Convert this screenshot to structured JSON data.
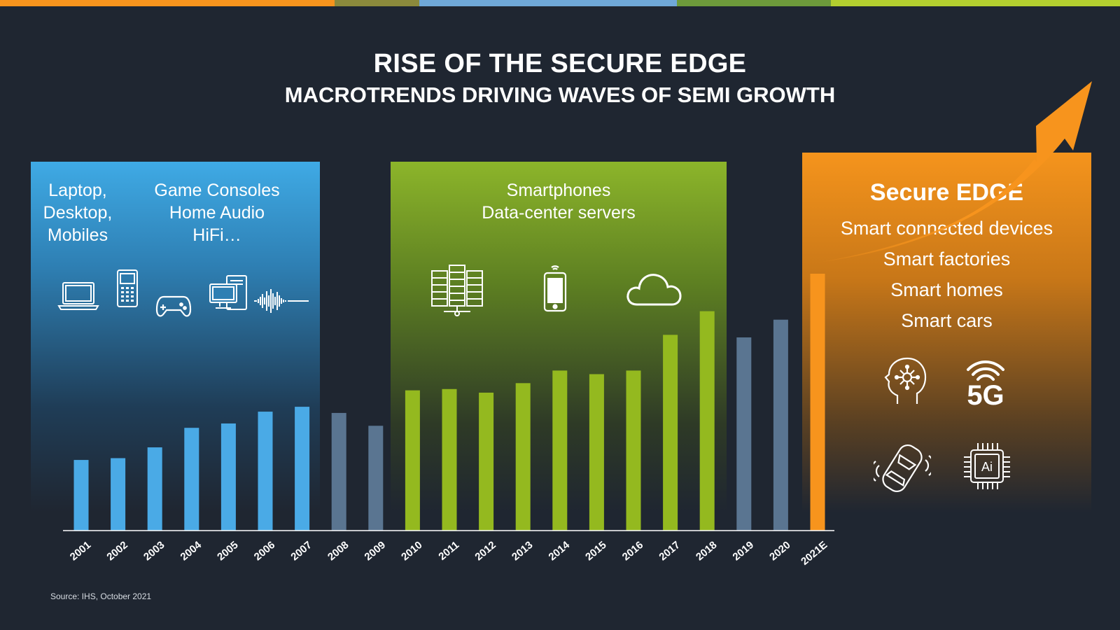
{
  "header": {
    "title": "RISE OF THE SECURE EDGE",
    "subtitle": "MACROTRENDS DRIVING WAVES OF SEMI GROWTH"
  },
  "colors": {
    "background": "#1f2631",
    "blue": "#4aaae6",
    "grey_blue": "#5a7591",
    "green": "#94b91f",
    "orange": "#f7941d",
    "top_strip": [
      "#f7941d",
      "#8b8a3c",
      "#6fa8d8",
      "#6d9a3b",
      "#b3cf2f"
    ]
  },
  "panels": {
    "blue": {
      "col1": [
        "Laptop,",
        "Desktop,",
        "Mobiles"
      ],
      "col2": [
        "Game Consoles",
        "Home Audio",
        "HiFi…"
      ],
      "icons": [
        "laptop-icon",
        "mobile-phone-icon",
        "game-controller-icon",
        "desktop-computer-icon",
        "sound-wave-icon"
      ]
    },
    "green": {
      "lines": [
        "Smartphones",
        "Data-center servers"
      ],
      "icons": [
        "server-rack-icon",
        "smartphone-icon",
        "cloud-icon"
      ]
    },
    "orange": {
      "heading": "Secure EDGE",
      "items": [
        "Smart connected devices",
        "Smart factories",
        "Smart homes",
        "Smart cars"
      ],
      "icons": [
        "ai-head-icon",
        "5g-icon",
        "connected-car-icon",
        "ai-chip-icon"
      ],
      "icon_5g_text": "5G",
      "icon_chip_text": "Ai"
    }
  },
  "chart_data": {
    "type": "bar",
    "title": "",
    "xlabel": "",
    "ylabel": "",
    "ylim": [
      0,
      100
    ],
    "categories": [
      "2001",
      "2002",
      "2003",
      "2004",
      "2005",
      "2006",
      "2007",
      "2008",
      "2009",
      "2010",
      "2011",
      "2012",
      "2013",
      "2014",
      "2015",
      "2016",
      "2017",
      "2018",
      "2019",
      "2020",
      "2021E"
    ],
    "values": [
      27.5,
      28.2,
      32.4,
      40,
      41.7,
      46.3,
      48.2,
      45.8,
      40.8,
      54.6,
      55.1,
      53.7,
      57.4,
      62.3,
      60.9,
      62.3,
      76.2,
      85.4,
      75.2,
      82.1,
      100
    ],
    "bar_colors": [
      "blue",
      "blue",
      "blue",
      "blue",
      "blue",
      "blue",
      "blue",
      "grey_blue",
      "grey_blue",
      "green",
      "green",
      "green",
      "green",
      "green",
      "green",
      "green",
      "green",
      "green",
      "grey_blue",
      "grey_blue",
      "orange"
    ],
    "grid": false,
    "legend": "none"
  },
  "source": "Source: IHS, October 2021"
}
